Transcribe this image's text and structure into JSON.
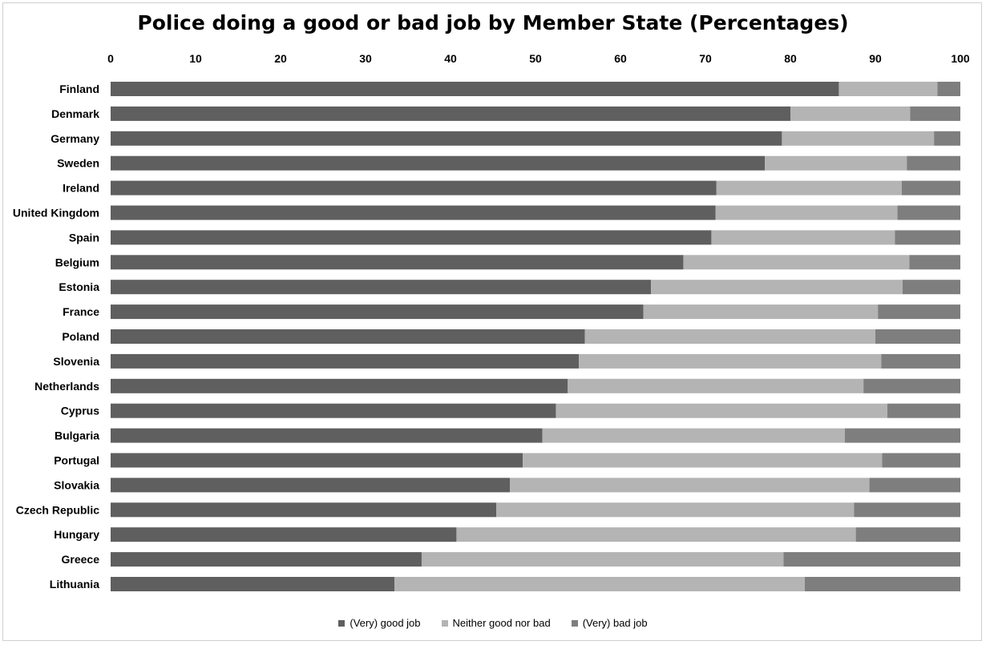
{
  "chart_data": {
    "type": "bar",
    "orientation": "horizontal",
    "stacked": true,
    "title": "Police doing a good or bad job by Member State (Percentages)",
    "xlim": [
      0,
      100
    ],
    "xticks": [
      "0",
      "10",
      "20",
      "30",
      "40",
      "50",
      "60",
      "70",
      "80",
      "90",
      "100"
    ],
    "x_axis_position": "top",
    "grid": false,
    "legend_position": "bottom",
    "categories": [
      "Finland",
      "Denmark",
      "Germany",
      "Sweden",
      "Ireland",
      "United Kingdom",
      "Spain",
      "Belgium",
      "Estonia",
      "France",
      "Poland",
      "Slovenia",
      "Netherlands",
      "Cyprus",
      "Bulgaria",
      "Portugal",
      "Slovakia",
      "Czech Republic",
      "Hungary",
      "Greece",
      "Lithuania"
    ],
    "series": [
      {
        "name": "(Very) good job",
        "color": "#5f5f5f",
        "values": [
          85.7,
          80.0,
          79.0,
          77.0,
          71.3,
          71.2,
          70.7,
          67.4,
          63.6,
          62.7,
          55.8,
          55.1,
          53.8,
          52.4,
          50.8,
          48.5,
          47.0,
          45.4,
          40.7,
          36.6,
          33.4
        ]
      },
      {
        "name": "Neither good nor bad",
        "color": "#b4b4b4",
        "values": [
          11.6,
          14.1,
          17.9,
          16.7,
          21.8,
          21.4,
          21.6,
          26.6,
          29.6,
          27.6,
          34.2,
          35.6,
          34.8,
          39.0,
          35.6,
          42.3,
          42.3,
          42.1,
          47.0,
          42.6,
          48.3
        ]
      },
      {
        "name": "(Very) bad job",
        "color": "#7e7e7e",
        "values": [
          2.7,
          5.9,
          3.1,
          6.3,
          6.9,
          7.4,
          7.7,
          6.0,
          6.8,
          9.7,
          10.0,
          9.3,
          11.4,
          8.6,
          13.6,
          9.2,
          10.7,
          12.5,
          12.3,
          20.8,
          18.3
        ]
      }
    ]
  }
}
